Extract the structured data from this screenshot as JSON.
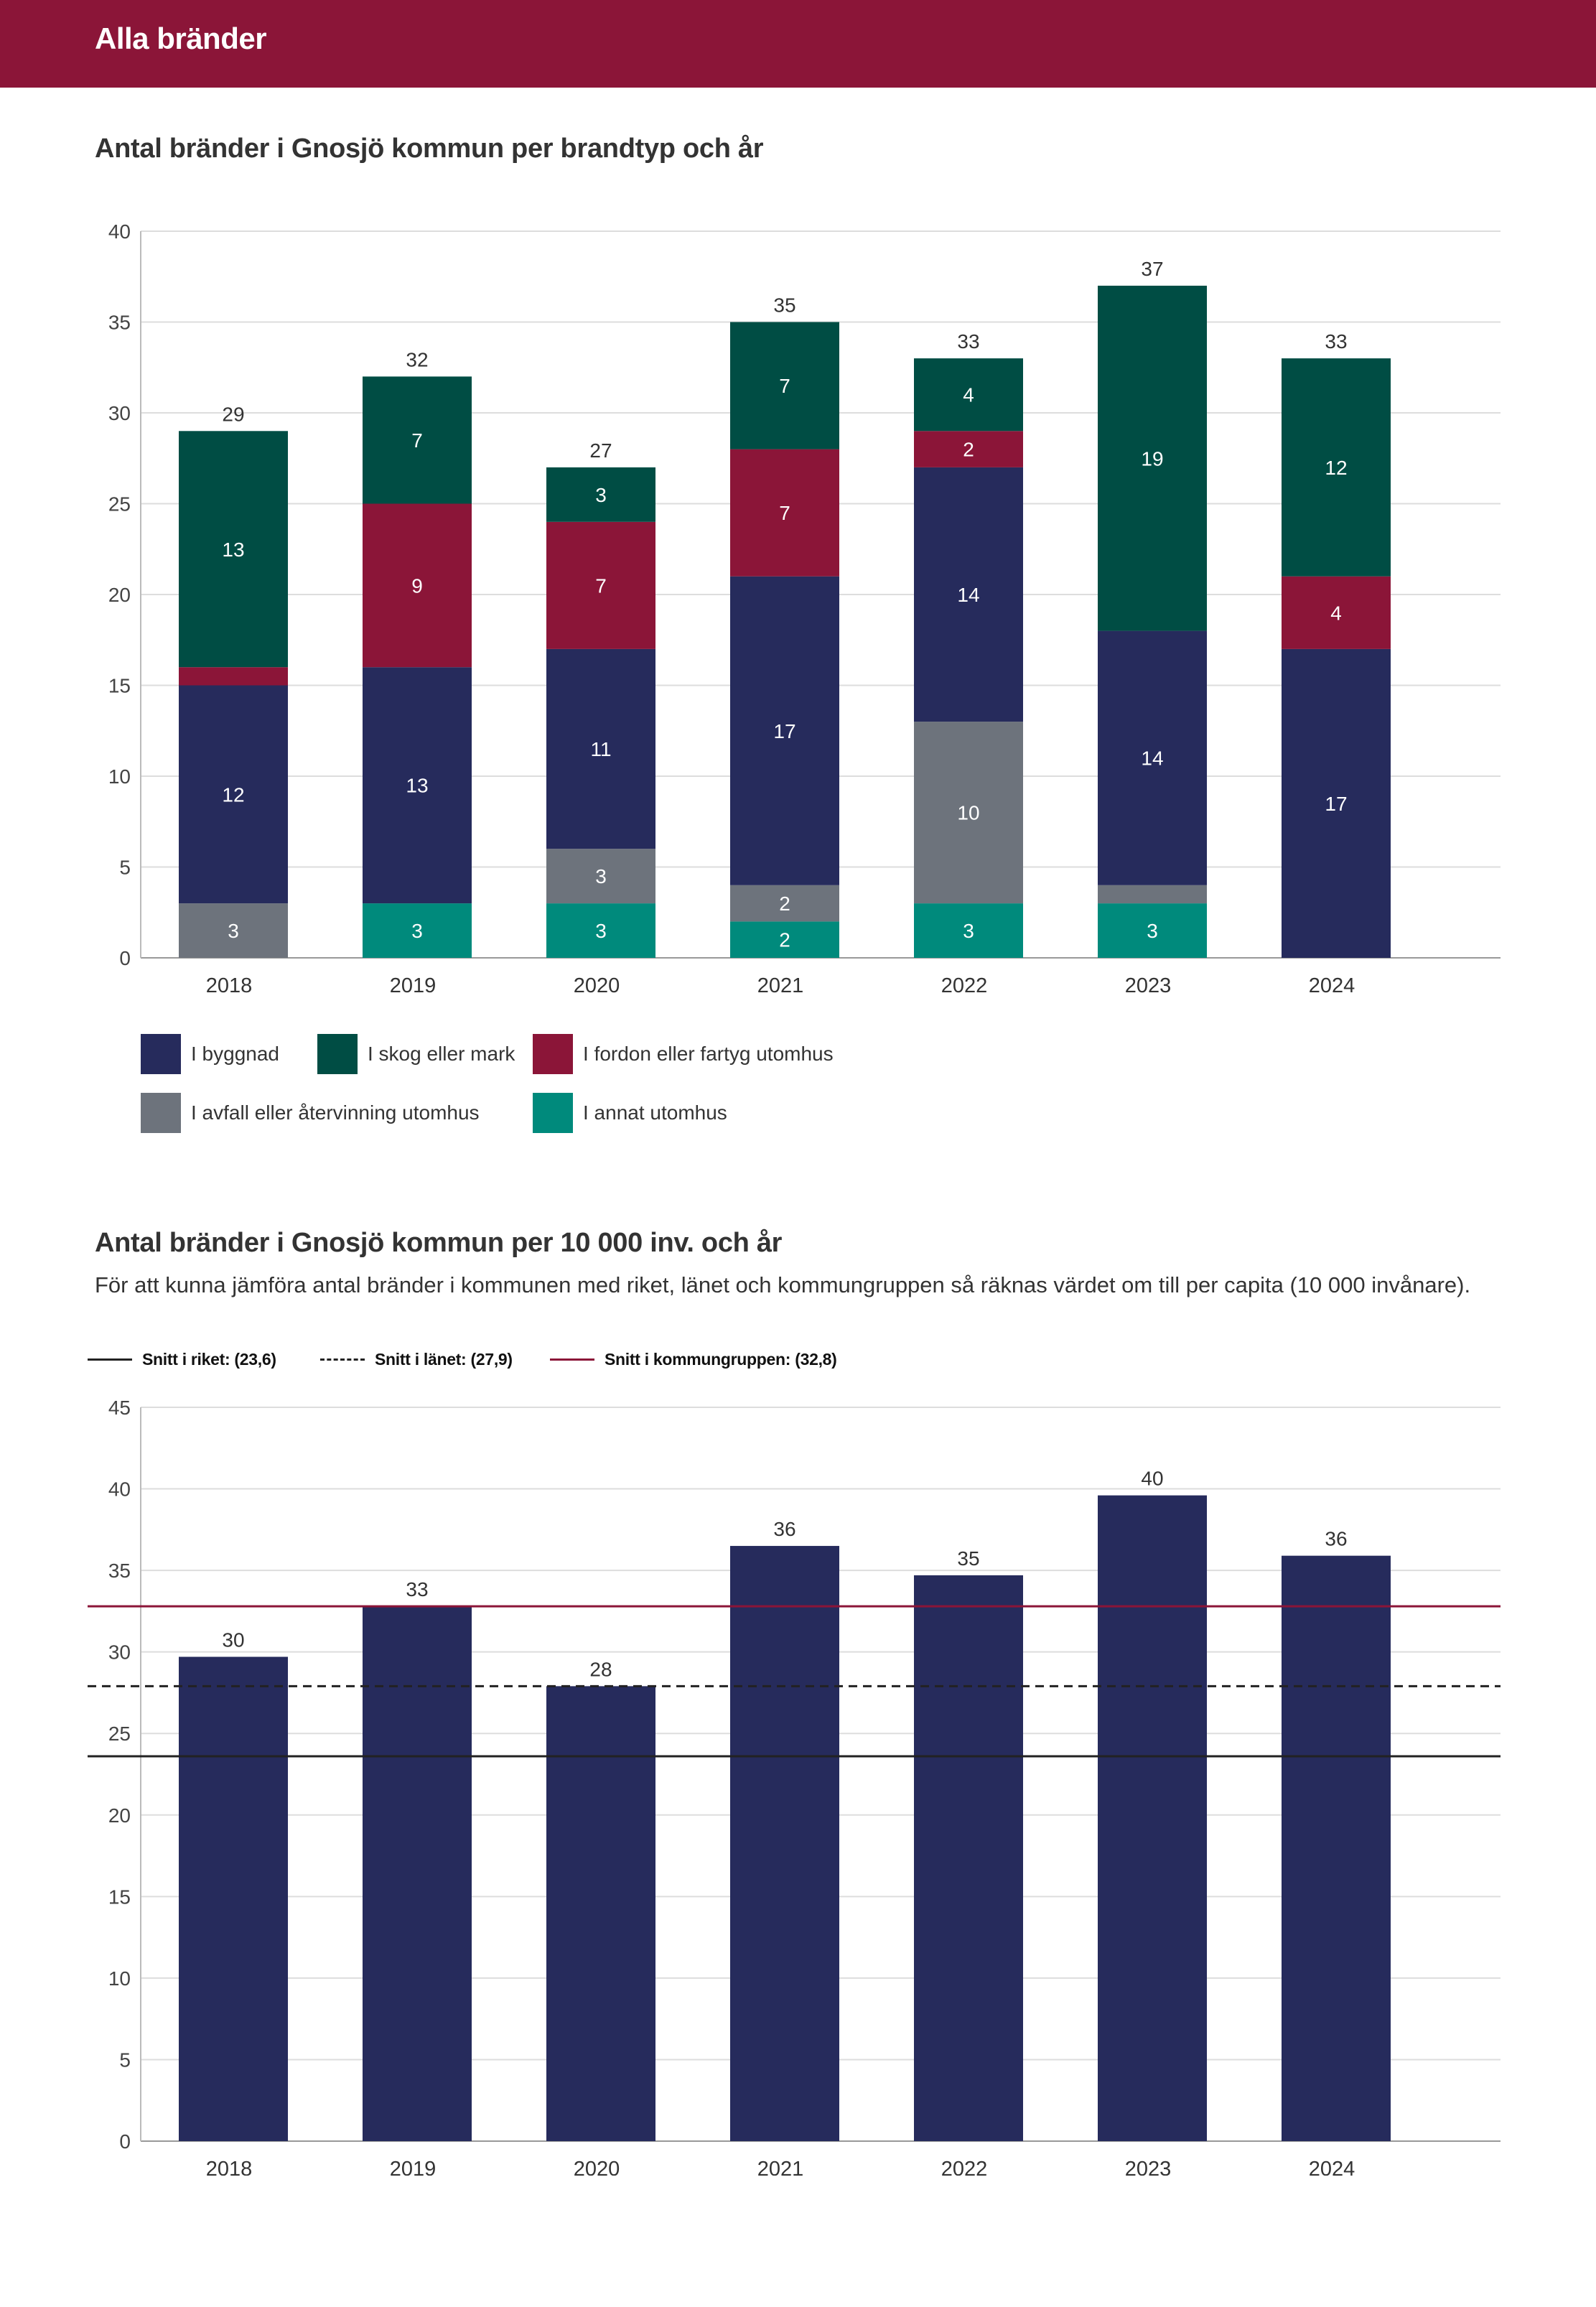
{
  "header": {
    "title": "Alla bränder"
  },
  "chart1": {
    "title": "Antal bränder i Gnosjö kommun per brandtyp och år"
  },
  "chart2": {
    "title": "Antal bränder i Gnosjö kommun per 10 000 inv. och år",
    "subtitle": "För att kunna jämföra antal bränder i kommunen med riket, länet och kommungruppen så räknas värdet om till per capita (10 000 invånare)."
  },
  "chart_data": [
    {
      "type": "bar",
      "stacked": true,
      "title": "Antal bränder i Gnosjö kommun per brandtyp och år",
      "categories": [
        "2018",
        "2019",
        "2020",
        "2021",
        "2022",
        "2023",
        "2024"
      ],
      "ylim": [
        0,
        40
      ],
      "yticks": [
        0,
        5,
        10,
        15,
        20,
        25,
        30,
        35,
        40
      ],
      "grid": true,
      "legend_position": "bottom",
      "totals": [
        29,
        32,
        27,
        35,
        33,
        37,
        33
      ],
      "series": [
        {
          "name": "I annat utomhus",
          "color": "#008a7c",
          "values": [
            0,
            3,
            3,
            2,
            3,
            3,
            0
          ],
          "labels": [
            "",
            "3",
            "3",
            "2",
            "3",
            "3",
            ""
          ]
        },
        {
          "name": "I avfall eller återvinning utomhus",
          "color": "#6d737c",
          "values": [
            3,
            0,
            3,
            2,
            10,
            1,
            0
          ],
          "labels": [
            "3",
            "",
            "3",
            "2",
            "10",
            "",
            ""
          ]
        },
        {
          "name": "I byggnad",
          "color": "#262b5c",
          "values": [
            12,
            13,
            11,
            17,
            14,
            14,
            17
          ],
          "labels": [
            "12",
            "13",
            "11",
            "17",
            "14",
            "14",
            "17"
          ]
        },
        {
          "name": "I fordon eller fartyg utomhus",
          "color": "#8b1538",
          "values": [
            1,
            9,
            7,
            7,
            2,
            0,
            4
          ],
          "labels": [
            "",
            "9",
            "7",
            "7",
            "2",
            "",
            "4"
          ]
        },
        {
          "name": "I skog eller mark",
          "color": "#004d44",
          "values": [
            13,
            7,
            3,
            7,
            4,
            19,
            12
          ],
          "labels": [
            "13",
            "7",
            "3",
            "7",
            "4",
            "19",
            "12"
          ]
        }
      ],
      "legend": [
        {
          "name": "I byggnad",
          "color": "#262b5c"
        },
        {
          "name": "I skog eller mark",
          "color": "#004d44"
        },
        {
          "name": "I fordon eller fartyg utomhus",
          "color": "#8b1538"
        },
        {
          "name": "I avfall eller återvinning utomhus",
          "color": "#6d737c"
        },
        {
          "name": "I annat utomhus",
          "color": "#008a7c"
        }
      ]
    },
    {
      "type": "bar",
      "title": "Antal bränder i Gnosjö kommun per 10 000 inv. och år",
      "categories": [
        "2018",
        "2019",
        "2020",
        "2021",
        "2022",
        "2023",
        "2024"
      ],
      "values": [
        29.7,
        32.8,
        27.9,
        36.5,
        34.7,
        39.6,
        35.9
      ],
      "labels": [
        "30",
        "33",
        "28",
        "36",
        "35",
        "40",
        "36"
      ],
      "bar_color": "#262b5c",
      "ylim": [
        0,
        45
      ],
      "yticks": [
        0,
        5,
        10,
        15,
        20,
        25,
        30,
        35,
        40,
        45
      ],
      "grid": true,
      "legend_position": "top-left",
      "reference_lines": [
        {
          "name": "Snitt i riket:",
          "label": "Snitt i riket: (23,6)",
          "value": 23.6,
          "color": "#222222",
          "style": "solid"
        },
        {
          "name": "Snitt i länet:",
          "label": "Snitt i länet: (27,9)",
          "value": 27.9,
          "color": "#222222",
          "style": "dashed"
        },
        {
          "name": "Snitt i kommungruppen:",
          "label": "Snitt i kommungruppen: (32,8)",
          "value": 32.8,
          "color": "#8b1538",
          "style": "solid"
        }
      ]
    }
  ]
}
